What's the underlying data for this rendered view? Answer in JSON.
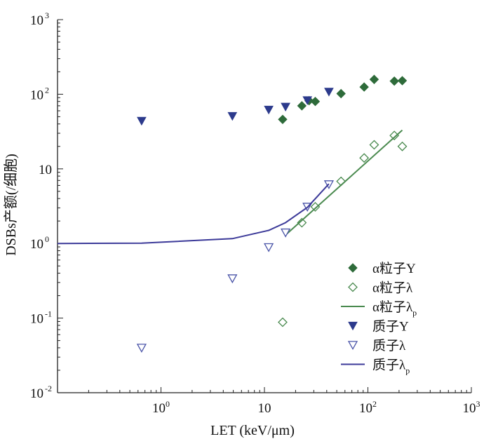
{
  "chart_data": {
    "type": "scatter",
    "xlabel": "LET (keV/μm)",
    "ylabel": "DSBs产额(/细胞)",
    "x_scale": "log",
    "y_scale": "log",
    "xlim": [
      0.1,
      1000
    ],
    "ylim": [
      0.01,
      1000
    ],
    "x_tick_labels": [
      {
        "value": 1,
        "base": "10",
        "sup": "0"
      },
      {
        "value": 10,
        "base": "10",
        "sup": ""
      },
      {
        "value": 100,
        "base": "10",
        "sup": "2"
      },
      {
        "value": 1000,
        "base": "10",
        "sup": "3"
      }
    ],
    "y_tick_labels": [
      {
        "value": 0.01,
        "base": "10",
        "sup": "-2"
      },
      {
        "value": 0.1,
        "base": "10",
        "sup": "-1"
      },
      {
        "value": 1,
        "base": "10",
        "sup": "0"
      },
      {
        "value": 10,
        "base": "10",
        "sup": ""
      },
      {
        "value": 100,
        "base": "10",
        "sup": "2"
      },
      {
        "value": 1000,
        "base": "10",
        "sup": "3"
      }
    ],
    "legend_position": "bottom-right",
    "series": [
      {
        "name": "α粒子Y",
        "label": "α粒子Y",
        "sub": "",
        "marker": "diamond-filled",
        "color": "#2e6b3a",
        "points": [
          [
            15,
            46
          ],
          [
            23,
            70
          ],
          [
            27,
            82
          ],
          [
            31,
            80
          ],
          [
            55,
            102
          ],
          [
            92,
            125
          ],
          [
            115,
            158
          ],
          [
            180,
            150
          ],
          [
            215,
            152
          ]
        ]
      },
      {
        "name": "α粒子λ",
        "label": "α粒子λ",
        "sub": "",
        "marker": "diamond-open",
        "color": "#4a8a4f",
        "points": [
          [
            15,
            0.088
          ],
          [
            23,
            1.9
          ],
          [
            31,
            3.1
          ],
          [
            55,
            6.8
          ],
          [
            92,
            14
          ],
          [
            115,
            21
          ],
          [
            180,
            28
          ],
          [
            215,
            20
          ]
        ]
      },
      {
        "name": "α粒子λp",
        "label": "α粒子λ",
        "sub": "p",
        "marker": "line",
        "color": "#4a8a4f",
        "points": [
          [
            16,
            1.3
          ],
          [
            215,
            33
          ]
        ]
      },
      {
        "name": "质子Y",
        "label": "质子Y",
        "sub": "",
        "marker": "triangle-down-filled",
        "color": "#2c3a8c",
        "points": [
          [
            0.65,
            44
          ],
          [
            4.9,
            51
          ],
          [
            11,
            62
          ],
          [
            16,
            68
          ],
          [
            26,
            83
          ],
          [
            42,
            108
          ]
        ]
      },
      {
        "name": "质子λ",
        "label": "质子λ",
        "sub": "",
        "marker": "triangle-down-open",
        "color": "#4a54a8",
        "points": [
          [
            0.65,
            0.04
          ],
          [
            4.9,
            0.34
          ],
          [
            11,
            0.89
          ],
          [
            16,
            1.4
          ],
          [
            26,
            3.1
          ],
          [
            42,
            6.2
          ]
        ]
      },
      {
        "name": "质子λp",
        "label": "质子λ",
        "sub": "p",
        "marker": "line",
        "color": "#3c3a99",
        "points": [
          [
            0.1,
            1.0
          ],
          [
            0.65,
            1.01
          ],
          [
            4.9,
            1.16
          ],
          [
            11,
            1.5
          ],
          [
            16,
            1.9
          ],
          [
            26,
            3.05
          ],
          [
            42,
            6.3
          ]
        ]
      }
    ]
  }
}
